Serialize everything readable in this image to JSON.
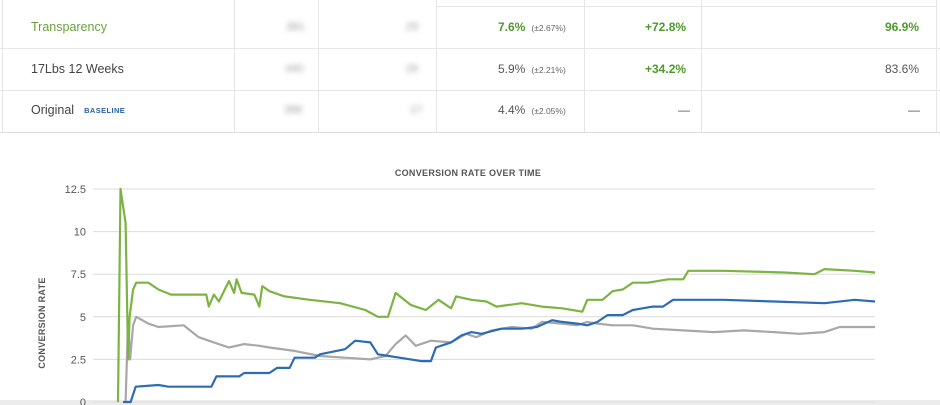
{
  "table": {
    "rows": [
      {
        "name": "Transparency",
        "visitors": "381",
        "conversions": "29",
        "rate": "7.6%",
        "ci": "(±2.67%)",
        "improvement": "+72.8%",
        "confidence": "96.9%",
        "badge": "",
        "theme": "winner"
      },
      {
        "name": "17Lbs 12 Weeks",
        "visitors": "440",
        "conversions": "26",
        "rate": "5.9%",
        "ci": "(±2.21%)",
        "improvement": "+34.2%",
        "confidence": "83.6%",
        "badge": "",
        "theme": "normal"
      },
      {
        "name": "Original",
        "visitors": "386",
        "conversions": "17",
        "rate": "4.4%",
        "ci": "(±2.05%)",
        "improvement": "—",
        "confidence": "—",
        "badge": "BASELINE",
        "theme": "baseline"
      }
    ]
  },
  "colors": {
    "accent_green": "#7cb342",
    "blue": "#2d6cb5",
    "gray": "#a8a8a8",
    "baseline_badge": "#2563a8"
  },
  "chart_data": {
    "type": "line",
    "title": "CONVERSION RATE OVER TIME",
    "ylabel": "CONVERSION RATE",
    "xlabel": "",
    "ylim": [
      0,
      12.5
    ],
    "yticks": [
      "0",
      "2.5",
      "5",
      "7.5",
      "10",
      "12.5"
    ],
    "grid": true,
    "series": [
      {
        "color": "#7cb342",
        "points": [
          [
            0,
            0
          ],
          [
            0.5,
            12.5
          ],
          [
            1.5,
            10.5
          ],
          [
            2,
            2.5
          ],
          [
            2.3,
            5
          ],
          [
            3,
            6.6
          ],
          [
            3.6,
            7
          ],
          [
            6,
            7
          ],
          [
            8,
            6.6
          ],
          [
            10.5,
            6.3
          ],
          [
            17.5,
            6.3
          ],
          [
            18,
            5.6
          ],
          [
            19,
            6.3
          ],
          [
            20,
            5.9
          ],
          [
            22,
            7.1
          ],
          [
            23,
            6.4
          ],
          [
            23.5,
            7.2
          ],
          [
            24.5,
            6.4
          ],
          [
            27,
            6.3
          ],
          [
            28,
            5.6
          ],
          [
            28.6,
            6.8
          ],
          [
            30,
            6.5
          ],
          [
            33,
            6.2
          ],
          [
            38,
            6
          ],
          [
            44,
            5.8
          ],
          [
            49,
            5.4
          ],
          [
            51.5,
            5
          ],
          [
            53.5,
            5
          ],
          [
            55,
            6.4
          ],
          [
            58,
            5.7
          ],
          [
            61,
            5.4
          ],
          [
            63.5,
            6
          ],
          [
            66,
            5.5
          ],
          [
            67,
            6.2
          ],
          [
            70,
            6
          ],
          [
            73,
            5.9
          ],
          [
            75,
            5.6
          ],
          [
            80,
            5.8
          ],
          [
            84,
            5.6
          ],
          [
            88,
            5.5
          ],
          [
            92,
            5.3
          ],
          [
            93,
            6
          ],
          [
            96,
            6
          ],
          [
            98,
            6.5
          ],
          [
            100,
            6.6
          ],
          [
            102,
            7
          ],
          [
            105,
            7
          ],
          [
            109,
            7.2
          ],
          [
            112,
            7.2
          ],
          [
            113,
            7.7
          ],
          [
            120,
            7.7
          ],
          [
            132,
            7.6
          ],
          [
            138,
            7.5
          ],
          [
            140,
            7.8
          ],
          [
            146,
            7.7
          ],
          [
            150,
            7.6
          ]
        ]
      },
      {
        "color": "#2d6cb5",
        "points": [
          [
            1,
            0
          ],
          [
            2.5,
            0
          ],
          [
            3.5,
            0.9
          ],
          [
            8,
            1
          ],
          [
            10,
            0.9
          ],
          [
            14,
            0.9
          ],
          [
            18.5,
            0.9
          ],
          [
            19.5,
            1.5
          ],
          [
            24,
            1.5
          ],
          [
            25,
            1.7
          ],
          [
            30,
            1.7
          ],
          [
            31.5,
            2
          ],
          [
            34,
            2
          ],
          [
            35,
            2.6
          ],
          [
            39,
            2.6
          ],
          [
            40,
            2.8
          ],
          [
            45,
            3.1
          ],
          [
            47,
            3.6
          ],
          [
            50,
            3.5
          ],
          [
            51.5,
            2.8
          ],
          [
            58,
            2.5
          ],
          [
            60,
            2.4
          ],
          [
            62,
            2.4
          ],
          [
            63,
            3.2
          ],
          [
            66,
            3.5
          ],
          [
            68,
            3.9
          ],
          [
            70,
            4.1
          ],
          [
            72,
            4
          ],
          [
            76,
            4.3
          ],
          [
            80,
            4.3
          ],
          [
            83,
            4.4
          ],
          [
            86,
            4.8
          ],
          [
            88,
            4.7
          ],
          [
            91,
            4.6
          ],
          [
            93,
            4.5
          ],
          [
            95,
            4.7
          ],
          [
            97,
            5.1
          ],
          [
            100,
            5.1
          ],
          [
            102,
            5.4
          ],
          [
            106,
            5.6
          ],
          [
            108,
            5.6
          ],
          [
            110,
            6
          ],
          [
            120,
            6
          ],
          [
            130,
            5.9
          ],
          [
            140,
            5.8
          ],
          [
            146,
            6
          ],
          [
            150,
            5.9
          ]
        ]
      },
      {
        "color": "#a8a8a8",
        "points": [
          [
            1.5,
            0
          ],
          [
            2,
            4.8
          ],
          [
            2.4,
            2.5
          ],
          [
            3,
            4.5
          ],
          [
            3.6,
            5
          ],
          [
            6,
            4.6
          ],
          [
            8,
            4.4
          ],
          [
            13,
            4.5
          ],
          [
            16,
            3.8
          ],
          [
            19,
            3.5
          ],
          [
            22,
            3.2
          ],
          [
            25,
            3.4
          ],
          [
            28,
            3.3
          ],
          [
            30,
            3.2
          ],
          [
            35,
            3
          ],
          [
            40,
            2.7
          ],
          [
            45,
            2.6
          ],
          [
            50,
            2.5
          ],
          [
            53,
            2.7
          ],
          [
            55,
            3.4
          ],
          [
            57,
            3.9
          ],
          [
            59,
            3.3
          ],
          [
            62,
            3.6
          ],
          [
            66,
            3.5
          ],
          [
            69,
            4
          ],
          [
            71,
            3.8
          ],
          [
            74,
            4.2
          ],
          [
            78,
            4.4
          ],
          [
            82,
            4.3
          ],
          [
            84,
            4.7
          ],
          [
            88,
            4.6
          ],
          [
            91,
            4.5
          ],
          [
            93,
            4.7
          ],
          [
            95,
            4.6
          ],
          [
            98,
            4.5
          ],
          [
            102,
            4.5
          ],
          [
            106,
            4.3
          ],
          [
            112,
            4.2
          ],
          [
            118,
            4.1
          ],
          [
            124,
            4.2
          ],
          [
            130,
            4.1
          ],
          [
            135,
            4
          ],
          [
            140,
            4.1
          ],
          [
            143,
            4.4
          ],
          [
            146,
            4.4
          ],
          [
            150,
            4.4
          ]
        ]
      }
    ]
  }
}
